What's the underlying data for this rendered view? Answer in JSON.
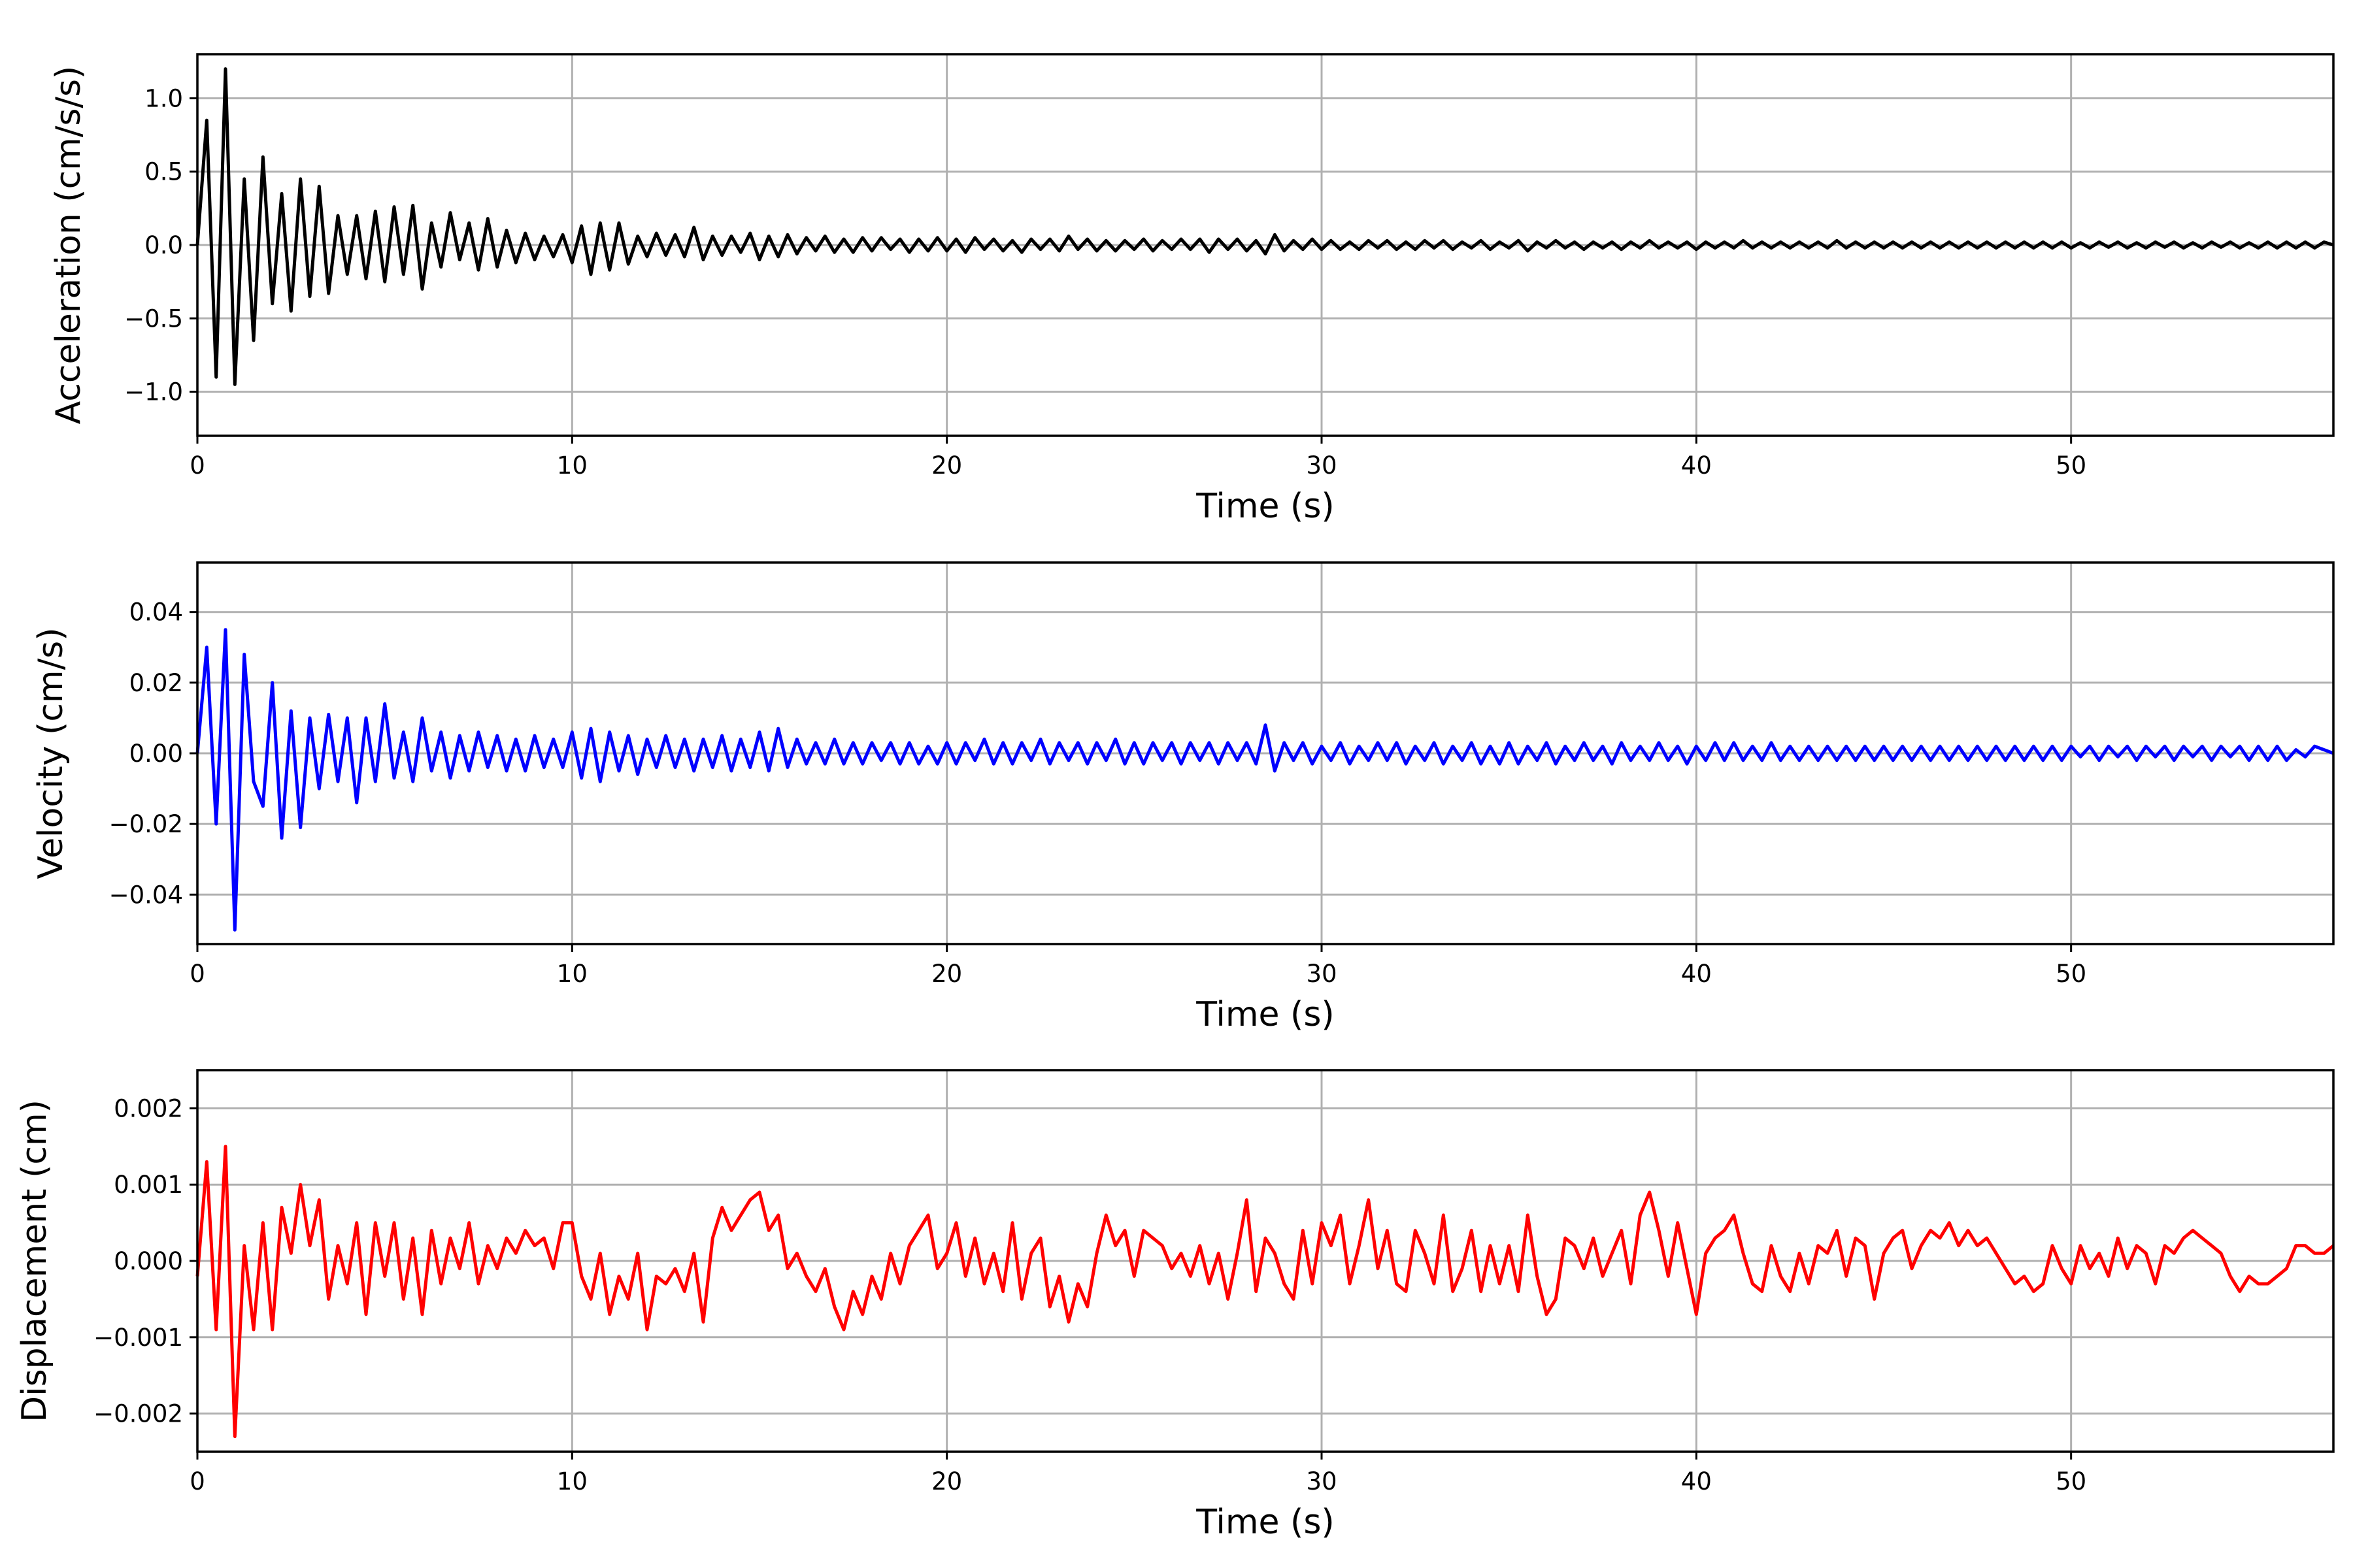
{
  "chart_data": [
    {
      "type": "line",
      "title": "",
      "xlabel": "Time (s)",
      "ylabel": "Acceleration (cm/s/s)",
      "xlim": [
        0,
        57
      ],
      "ylim": [
        -1.3,
        1.3
      ],
      "grid": true,
      "xticks": [
        0,
        10,
        20,
        30,
        40,
        50
      ],
      "xtick_labels": [
        "0",
        "10",
        "20",
        "30",
        "40",
        "50"
      ],
      "yticks": [
        -1.0,
        -0.5,
        0.0,
        0.5,
        1.0
      ],
      "ytick_labels": [
        "−1.0",
        "−0.5",
        "0.0",
        "0.5",
        "1.0"
      ],
      "series": [
        {
          "name": "Acceleration",
          "color": "#000000",
          "t0": 0,
          "dt": 0.25,
          "values": [
            0,
            0.85,
            -0.9,
            1.2,
            -0.95,
            0.45,
            -0.65,
            0.6,
            -0.4,
            0.35,
            -0.45,
            0.45,
            -0.35,
            0.4,
            -0.33,
            0.2,
            -0.2,
            0.2,
            -0.23,
            0.23,
            -0.25,
            0.26,
            -0.2,
            0.27,
            -0.3,
            0.15,
            -0.15,
            0.22,
            -0.1,
            0.15,
            -0.17,
            0.18,
            -0.15,
            0.1,
            -0.12,
            0.08,
            -0.1,
            0.06,
            -0.08,
            0.07,
            -0.12,
            0.13,
            -0.2,
            0.15,
            -0.17,
            0.15,
            -0.13,
            0.06,
            -0.08,
            0.08,
            -0.07,
            0.07,
            -0.08,
            0.12,
            -0.1,
            0.06,
            -0.07,
            0.06,
            -0.05,
            0.08,
            -0.1,
            0.06,
            -0.08,
            0.07,
            -0.06,
            0.05,
            -0.04,
            0.06,
            -0.05,
            0.04,
            -0.05,
            0.05,
            -0.04,
            0.05,
            -0.03,
            0.04,
            -0.05,
            0.04,
            -0.04,
            0.05,
            -0.04,
            0.04,
            -0.05,
            0.05,
            -0.03,
            0.04,
            -0.04,
            0.03,
            -0.05,
            0.04,
            -0.03,
            0.04,
            -0.04,
            0.06,
            -0.03,
            0.04,
            -0.04,
            0.03,
            -0.04,
            0.03,
            -0.03,
            0.04,
            -0.04,
            0.03,
            -0.03,
            0.04,
            -0.03,
            0.04,
            -0.05,
            0.04,
            -0.03,
            0.04,
            -0.04,
            0.03,
            -0.06,
            0.07,
            -0.04,
            0.03,
            -0.03,
            0.04,
            -0.03,
            0.03,
            -0.03,
            0.02,
            -0.03,
            0.03,
            -0.02,
            0.03,
            -0.03,
            0.02,
            -0.03,
            0.03,
            -0.02,
            0.03,
            -0.03,
            0.02,
            -0.02,
            0.03,
            -0.03,
            0.02,
            -0.02,
            0.03,
            -0.04,
            0.02,
            -0.02,
            0.03,
            -0.02,
            0.02,
            -0.03,
            0.02,
            -0.02,
            0.02,
            -0.03,
            0.02,
            -0.02,
            0.03,
            -0.02,
            0.02,
            -0.02,
            0.02,
            -0.03,
            0.02,
            -0.02,
            0.02,
            -0.02,
            0.03,
            -0.02,
            0.02,
            -0.02,
            0.02,
            -0.02,
            0.02,
            -0.02,
            0.02,
            -0.02,
            0.03,
            -0.02,
            0.02,
            -0.02,
            0.02,
            -0.02,
            0.02,
            -0.02,
            0.02,
            -0.02,
            0.02,
            -0.02,
            0.02,
            -0.02,
            0.02,
            -0.02,
            0.02,
            -0.02,
            0.02,
            -0.02,
            0.02,
            -0.02,
            0.02,
            -0.02,
            0.02,
            -0.02,
            0.015,
            -0.02,
            0.02,
            -0.015,
            0.02,
            -0.02,
            0.015,
            -0.02,
            0.02,
            -0.015,
            0.02,
            -0.02,
            0.015,
            -0.02,
            0.02,
            -0.015,
            0.02,
            -0.02,
            0.015,
            -0.02,
            0.02,
            -0.02,
            0.02,
            -0.02,
            0.02,
            -0.02,
            0.02,
            0
          ]
        }
      ]
    },
    {
      "type": "line",
      "title": "",
      "xlabel": "Time (s)",
      "ylabel": "Velocity (cm/s)",
      "xlim": [
        0,
        57
      ],
      "ylim": [
        -0.054,
        0.054
      ],
      "grid": true,
      "xticks": [
        0,
        10,
        20,
        30,
        40,
        50
      ],
      "xtick_labels": [
        "0",
        "10",
        "20",
        "30",
        "40",
        "50"
      ],
      "yticks": [
        -0.04,
        -0.02,
        0.0,
        0.02,
        0.04
      ],
      "ytick_labels": [
        "−0.04",
        "−0.02",
        "0.00",
        "0.02",
        "0.04"
      ],
      "series": [
        {
          "name": "Velocity",
          "color": "#0000ff",
          "t0": 0,
          "dt": 0.25,
          "values": [
            0,
            0.03,
            -0.02,
            0.035,
            -0.05,
            0.028,
            -0.008,
            -0.015,
            0.02,
            -0.024,
            0.012,
            -0.021,
            0.01,
            -0.01,
            0.011,
            -0.008,
            0.01,
            -0.014,
            0.01,
            -0.008,
            0.014,
            -0.007,
            0.006,
            -0.008,
            0.01,
            -0.005,
            0.006,
            -0.007,
            0.005,
            -0.005,
            0.006,
            -0.004,
            0.005,
            -0.005,
            0.004,
            -0.005,
            0.005,
            -0.004,
            0.004,
            -0.004,
            0.006,
            -0.007,
            0.007,
            -0.008,
            0.006,
            -0.005,
            0.005,
            -0.006,
            0.004,
            -0.004,
            0.005,
            -0.004,
            0.004,
            -0.005,
            0.004,
            -0.004,
            0.005,
            -0.005,
            0.004,
            -0.004,
            0.006,
            -0.005,
            0.007,
            -0.004,
            0.004,
            -0.003,
            0.003,
            -0.003,
            0.004,
            -0.003,
            0.003,
            -0.003,
            0.003,
            -0.002,
            0.003,
            -0.003,
            0.003,
            -0.003,
            0.002,
            -0.003,
            0.003,
            -0.003,
            0.003,
            -0.002,
            0.004,
            -0.003,
            0.003,
            -0.003,
            0.003,
            -0.002,
            0.004,
            -0.003,
            0.003,
            -0.002,
            0.003,
            -0.003,
            0.003,
            -0.002,
            0.004,
            -0.003,
            0.003,
            -0.003,
            0.003,
            -0.002,
            0.003,
            -0.003,
            0.003,
            -0.002,
            0.003,
            -0.003,
            0.003,
            -0.002,
            0.003,
            -0.003,
            0.008,
            -0.005,
            0.003,
            -0.002,
            0.003,
            -0.003,
            0.002,
            -0.002,
            0.003,
            -0.003,
            0.002,
            -0.002,
            0.003,
            -0.002,
            0.003,
            -0.003,
            0.002,
            -0.002,
            0.003,
            -0.003,
            0.002,
            -0.002,
            0.003,
            -0.003,
            0.002,
            -0.003,
            0.003,
            -0.003,
            0.002,
            -0.002,
            0.003,
            -0.003,
            0.002,
            -0.002,
            0.003,
            -0.002,
            0.002,
            -0.003,
            0.003,
            -0.002,
            0.002,
            -0.002,
            0.003,
            -0.002,
            0.002,
            -0.003,
            0.002,
            -0.002,
            0.003,
            -0.002,
            0.003,
            -0.002,
            0.002,
            -0.002,
            0.003,
            -0.002,
            0.002,
            -0.002,
            0.002,
            -0.002,
            0.002,
            -0.002,
            0.002,
            -0.002,
            0.002,
            -0.002,
            0.002,
            -0.002,
            0.002,
            -0.002,
            0.002,
            -0.002,
            0.002,
            -0.002,
            0.002,
            -0.002,
            0.002,
            -0.002,
            0.002,
            -0.002,
            0.002,
            -0.002,
            0.002,
            -0.002,
            0.002,
            -0.002,
            0.002,
            -0.001,
            0.002,
            -0.002,
            0.002,
            -0.001,
            0.002,
            -0.002,
            0.002,
            -0.001,
            0.002,
            -0.002,
            0.002,
            -0.001,
            0.002,
            -0.002,
            0.002,
            -0.001,
            0.002,
            -0.002,
            0.002,
            -0.002,
            0.002,
            -0.002,
            0.001,
            -0.001,
            0.002,
            0.001,
            0
          ]
        }
      ]
    },
    {
      "type": "line",
      "title": "",
      "xlabel": "Time (s)",
      "ylabel": "Displacement (cm)",
      "xlim": [
        0,
        57
      ],
      "ylim": [
        -0.0025,
        0.0025
      ],
      "grid": true,
      "xticks": [
        0,
        10,
        20,
        30,
        40,
        50
      ],
      "xtick_labels": [
        "0",
        "10",
        "20",
        "30",
        "40",
        "50"
      ],
      "yticks": [
        -0.002,
        -0.001,
        0.0,
        0.001,
        0.002
      ],
      "ytick_labels": [
        "−0.002",
        "−0.001",
        "0.000",
        "0.001",
        "0.002"
      ],
      "series": [
        {
          "name": "Displacement",
          "color": "#ff0000",
          "t0": 0,
          "dt": 0.25,
          "values": [
            -0.0002,
            0.0013,
            -0.0009,
            0.0015,
            -0.0023,
            0.0002,
            -0.0009,
            0.0005,
            -0.0009,
            0.0007,
            0.0001,
            0.001,
            0.0002,
            0.0008,
            -0.0005,
            0.0002,
            -0.0003,
            0.0005,
            -0.0007,
            0.0005,
            -0.0002,
            0.0005,
            -0.0005,
            0.0003,
            -0.0007,
            0.0004,
            -0.0003,
            0.0003,
            -0.0001,
            0.0005,
            -0.0003,
            0.0002,
            -0.0001,
            0.0003,
            0.0001,
            0.0004,
            0.0002,
            0.0003,
            -0.0001,
            0.0005,
            0.0005,
            -0.0002,
            -0.0005,
            0.0001,
            -0.0007,
            -0.0002,
            -0.0005,
            0.0001,
            -0.0009,
            -0.0002,
            -0.0003,
            -0.0001,
            -0.0004,
            0.0001,
            -0.0008,
            0.0003,
            0.0007,
            0.0004,
            0.0006,
            0.0008,
            0.0009,
            0.0004,
            0.0006,
            -0.0001,
            0.0001,
            -0.0002,
            -0.0004,
            -0.0001,
            -0.0006,
            -0.0009,
            -0.0004,
            -0.0007,
            -0.0002,
            -0.0005,
            0.0001,
            -0.0003,
            0.0002,
            0.0004,
            0.0006,
            -0.0001,
            0.0001,
            0.0005,
            -0.0002,
            0.0003,
            -0.0003,
            0.0001,
            -0.0004,
            0.0005,
            -0.0005,
            0.0001,
            0.0003,
            -0.0006,
            -0.0002,
            -0.0008,
            -0.0003,
            -0.0006,
            0.0001,
            0.0006,
            0.0002,
            0.0004,
            -0.0002,
            0.0004,
            0.0003,
            0.0002,
            -0.0001,
            0.0001,
            -0.0002,
            0.0002,
            -0.0003,
            0.0001,
            -0.0005,
            0.0001,
            0.0008,
            -0.0004,
            0.0003,
            0.0001,
            -0.0003,
            -0.0005,
            0.0004,
            -0.0003,
            0.0005,
            0.0002,
            0.0006,
            -0.0003,
            0.0002,
            0.0008,
            -0.0001,
            0.0004,
            -0.0003,
            -0.0004,
            0.0004,
            0.0001,
            -0.0003,
            0.0006,
            -0.0004,
            -0.0001,
            0.0004,
            -0.0004,
            0.0002,
            -0.0003,
            0.0002,
            -0.0004,
            0.0006,
            -0.0002,
            -0.0007,
            -0.0005,
            0.0003,
            0.0002,
            -0.0001,
            0.0003,
            -0.0002,
            0.0001,
            0.0004,
            -0.0003,
            0.0006,
            0.0009,
            0.0004,
            -0.0002,
            0.0005,
            -0.0001,
            -0.0007,
            0.0001,
            0.0003,
            0.0004,
            0.0006,
            0.0001,
            -0.0003,
            -0.0004,
            0.0002,
            -0.0002,
            -0.0004,
            0.0001,
            -0.0003,
            0.0002,
            0.0001,
            0.0004,
            -0.0002,
            0.0003,
            0.0002,
            -0.0005,
            0.0001,
            0.0003,
            0.0004,
            -0.0001,
            0.0002,
            0.0004,
            0.0003,
            0.0005,
            0.0002,
            0.0004,
            0.0002,
            0.0003,
            0.0001,
            -0.0001,
            -0.0003,
            -0.0002,
            -0.0004,
            -0.0003,
            0.0002,
            -0.0001,
            -0.0003,
            0.0002,
            -0.0001,
            0.0001,
            -0.0002,
            0.0003,
            -0.0001,
            0.0002,
            0.0001,
            -0.0003,
            0.0002,
            0.0001,
            0.0003,
            0.0004,
            0.0003,
            0.0002,
            0.0001,
            -0.0002,
            -0.0004,
            -0.0002,
            -0.0003,
            -0.0003,
            -0.0002,
            -0.0001,
            0.0002,
            0.0002,
            0.0001,
            0.0001,
            0.0002
          ]
        }
      ]
    }
  ]
}
